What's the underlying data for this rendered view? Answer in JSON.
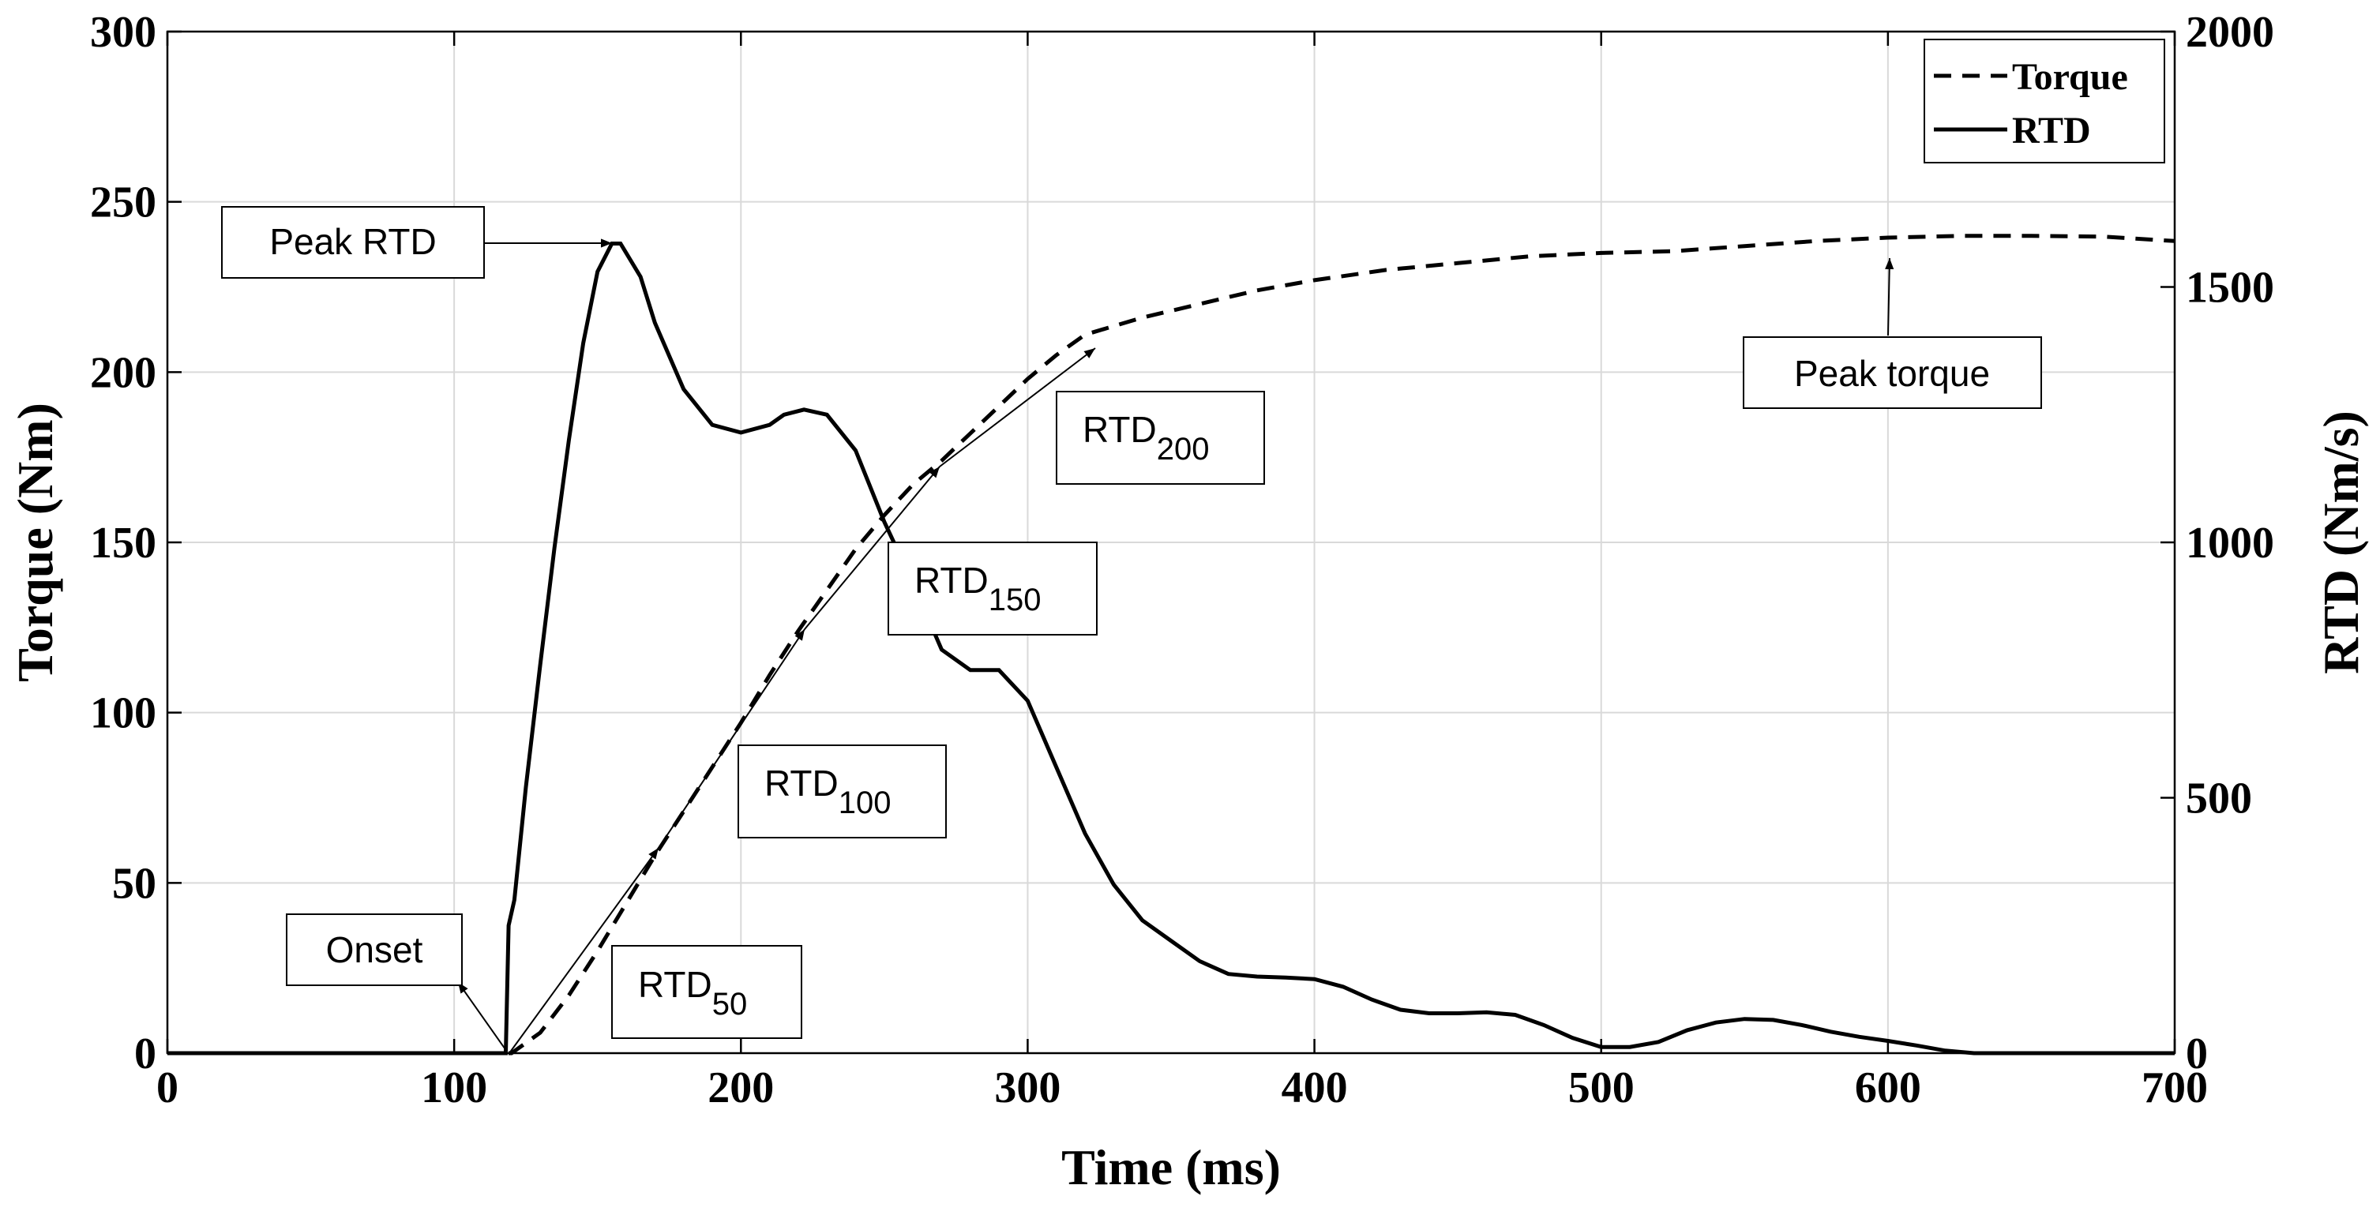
{
  "chart_data": {
    "type": "line",
    "xlabel": "Time (ms)",
    "ylabel_left": "Torque (Nm)",
    "ylabel_right": "RTD (Nm/s)",
    "xlim": [
      0,
      700
    ],
    "ylim_left": [
      0,
      300
    ],
    "ylim_right": [
      0,
      2000
    ],
    "x_ticks": [
      0,
      100,
      200,
      300,
      400,
      500,
      600,
      700
    ],
    "y_ticks_left": [
      0,
      50,
      100,
      150,
      200,
      250,
      300
    ],
    "y_ticks_right": [
      0,
      500,
      1000,
      1500,
      2000
    ],
    "grid": true,
    "legend_position": "top-right",
    "series": [
      {
        "name": "Torque",
        "axis": "left",
        "style": "dashed",
        "points": [
          [
            0,
            0
          ],
          [
            120,
            0
          ],
          [
            130,
            6
          ],
          [
            140,
            17
          ],
          [
            150,
            30
          ],
          [
            160,
            44
          ],
          [
            170,
            58
          ],
          [
            180,
            71
          ],
          [
            190,
            84
          ],
          [
            200,
            97
          ],
          [
            210,
            111
          ],
          [
            220,
            124
          ],
          [
            230,
            136
          ],
          [
            240,
            148
          ],
          [
            250,
            158
          ],
          [
            260,
            167
          ],
          [
            270,
            174
          ],
          [
            280,
            182
          ],
          [
            290,
            190
          ],
          [
            300,
            198
          ],
          [
            310,
            205
          ],
          [
            320,
            211
          ],
          [
            340,
            216
          ],
          [
            360,
            220
          ],
          [
            380,
            224
          ],
          [
            400,
            227
          ],
          [
            425,
            230
          ],
          [
            450,
            232
          ],
          [
            475,
            234
          ],
          [
            500,
            235
          ],
          [
            525,
            235.5
          ],
          [
            550,
            237
          ],
          [
            575,
            238.5
          ],
          [
            600,
            239.5
          ],
          [
            625,
            240
          ],
          [
            650,
            240
          ],
          [
            675,
            239.8
          ],
          [
            700,
            238.5
          ]
        ]
      },
      {
        "name": "RTD",
        "axis": "right",
        "style": "solid",
        "points": [
          [
            0,
            0
          ],
          [
            118,
            0
          ],
          [
            119,
            250
          ],
          [
            121,
            300
          ],
          [
            125,
            520
          ],
          [
            130,
            760
          ],
          [
            135,
            990
          ],
          [
            140,
            1200
          ],
          [
            145,
            1390
          ],
          [
            150,
            1530
          ],
          [
            155,
            1585
          ],
          [
            158,
            1585
          ],
          [
            165,
            1520
          ],
          [
            170,
            1430
          ],
          [
            180,
            1300
          ],
          [
            190,
            1230
          ],
          [
            200,
            1215
          ],
          [
            210,
            1230
          ],
          [
            215,
            1250
          ],
          [
            222,
            1260
          ],
          [
            230,
            1250
          ],
          [
            240,
            1180
          ],
          [
            250,
            1040
          ],
          [
            260,
            920
          ],
          [
            270,
            790
          ],
          [
            280,
            750
          ],
          [
            290,
            750
          ],
          [
            300,
            690
          ],
          [
            310,
            560
          ],
          [
            320,
            430
          ],
          [
            330,
            330
          ],
          [
            340,
            260
          ],
          [
            350,
            220
          ],
          [
            360,
            180
          ],
          [
            370,
            155
          ],
          [
            380,
            150
          ],
          [
            390,
            148
          ],
          [
            400,
            145
          ],
          [
            410,
            130
          ],
          [
            420,
            105
          ],
          [
            430,
            85
          ],
          [
            440,
            78
          ],
          [
            450,
            78
          ],
          [
            460,
            80
          ],
          [
            470,
            75
          ],
          [
            480,
            55
          ],
          [
            490,
            30
          ],
          [
            500,
            12
          ],
          [
            510,
            12
          ],
          [
            520,
            22
          ],
          [
            530,
            45
          ],
          [
            540,
            60
          ],
          [
            550,
            67
          ],
          [
            560,
            65
          ],
          [
            570,
            55
          ],
          [
            580,
            42
          ],
          [
            590,
            32
          ],
          [
            600,
            24
          ],
          [
            610,
            15
          ],
          [
            620,
            5
          ],
          [
            630,
            0
          ],
          [
            700,
            0
          ]
        ]
      }
    ],
    "annotations": [
      {
        "id": "peak_rtd",
        "text": "Peak RTD",
        "sub": "",
        "x": 155,
        "y": 237.5
      },
      {
        "id": "onset",
        "text": "Onset",
        "sub": "",
        "x": 118,
        "y": 0
      },
      {
        "id": "rtd50",
        "text": "RTD",
        "sub": "50",
        "x": 170,
        "y": 60
      },
      {
        "id": "rtd100",
        "text": "RTD",
        "sub": "100",
        "x": 220,
        "y": 124
      },
      {
        "id": "rtd150",
        "text": "RTD",
        "sub": "150",
        "x": 270,
        "y": 174
      },
      {
        "id": "rtd200",
        "text": "RTD",
        "sub": "200",
        "x": 323,
        "y": 207
      },
      {
        "id": "peak_torque",
        "text": "Peak torque",
        "sub": "",
        "x": 603,
        "y": 233
      }
    ]
  }
}
